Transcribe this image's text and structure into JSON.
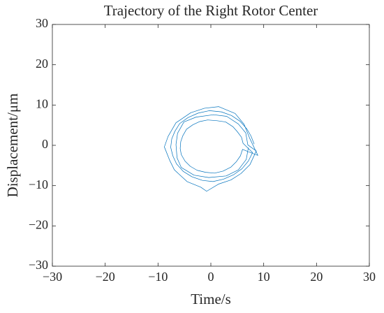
{
  "chart_data": {
    "type": "line",
    "title": "Trajectory of the Right Rotor Center",
    "xlabel": "Time/s",
    "ylabel": "Displacement/μm",
    "xlim": [
      -30,
      30
    ],
    "ylim": [
      -30,
      30
    ],
    "xticks": [
      {
        "value": -30,
        "label": "−30"
      },
      {
        "value": -20,
        "label": "−20"
      },
      {
        "value": -10,
        "label": "−10"
      },
      0,
      10,
      20,
      30
    ],
    "yticks": [
      {
        "value": -30,
        "label": "−30"
      },
      {
        "value": -20,
        "label": "−20"
      },
      {
        "value": -10,
        "label": "−10"
      },
      0,
      10,
      20,
      30
    ],
    "series": [
      {
        "color": "#0072bd",
        "x": [
          8.2,
          7.6,
          6.8,
          5.5,
          3.9,
          2.0,
          -0.3,
          -2.4,
          -4.3,
          -5.9,
          -6.8,
          -7.4,
          -7.6,
          -7.2,
          -6.5,
          -5.2,
          -3.6,
          -1.6,
          0.4,
          2.4,
          4.3,
          5.9,
          7.1,
          7.9,
          6.1,
          5.8,
          5.0,
          4.2,
          2.8,
          1.2,
          -0.6,
          -2.1,
          -3.4,
          -4.6,
          -5.3,
          -5.7,
          -5.8,
          -5.6,
          -4.9,
          -3.9,
          -2.6,
          -1.0,
          0.7,
          2.3,
          3.8,
          4.8,
          5.6,
          6.0,
          8.9,
          7.3,
          6.3,
          4.6,
          1.5,
          -1.2,
          -3.8,
          -6.6,
          -8.1,
          -8.8,
          -7.8,
          -6.9,
          -4.5,
          -1.9,
          -0.8,
          1.5,
          3.8,
          5.7,
          7.4,
          8.6,
          7.0,
          6.6,
          5.2,
          3.0,
          0.5,
          -2.8,
          -5.1,
          -6.3,
          -6.6,
          -6.4,
          -5.6,
          -3.2,
          -0.4,
          2.9,
          5.2,
          6.7,
          7.1
        ],
        "y": [
          0.3,
          2.3,
          4.1,
          6.0,
          7.4,
          8.3,
          8.6,
          8.0,
          6.9,
          5.4,
          3.5,
          1.6,
          -0.5,
          -2.6,
          -4.6,
          -6.5,
          -7.8,
          -8.7,
          -9.0,
          -8.4,
          -7.3,
          -5.8,
          -3.9,
          -1.8,
          0.5,
          2.0,
          3.4,
          4.6,
          5.8,
          6.1,
          6.3,
          5.9,
          5.1,
          4.0,
          2.4,
          0.9,
          -0.8,
          -2.3,
          -3.9,
          -5.2,
          -6.2,
          -6.7,
          -6.9,
          -6.4,
          -5.4,
          -4.1,
          -2.6,
          -1.0,
          -2.5,
          1.9,
          5.2,
          7.9,
          9.6,
          9.2,
          8.1,
          5.6,
          2.2,
          -0.4,
          -3.7,
          -6.1,
          -9.0,
          -10.4,
          -11.4,
          -9.6,
          -8.6,
          -7.0,
          -4.8,
          -1.4,
          0.1,
          3.1,
          5.3,
          7.2,
          7.6,
          7.0,
          5.8,
          3.0,
          0.2,
          -3.1,
          -5.5,
          -7.4,
          -8.0,
          -7.6,
          -6.1,
          -3.5,
          -0.6
        ]
      }
    ]
  }
}
